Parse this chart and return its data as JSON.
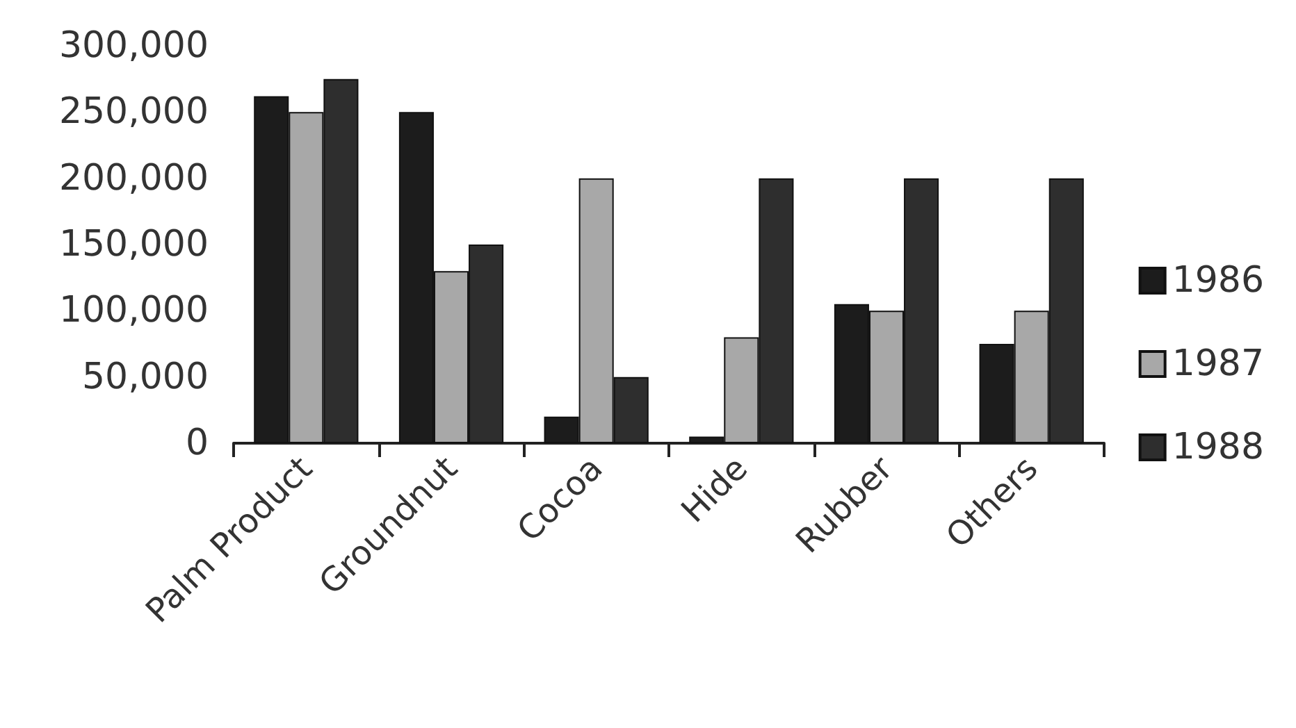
{
  "chart_data": {
    "type": "bar",
    "categories": [
      "Palm Product",
      "Groundnut",
      "Cocoa",
      "Hide",
      "Rubber",
      "Others"
    ],
    "series": [
      {
        "name": "1986",
        "color": "#1c1c1c",
        "values": [
          262000,
          250000,
          20000,
          5000,
          105000,
          75000
        ]
      },
      {
        "name": "1987",
        "color": "#a8a8a8",
        "values": [
          250000,
          130000,
          200000,
          80000,
          100000,
          100000
        ]
      },
      {
        "name": "1988",
        "color": "#2e2e2e",
        "values": [
          275000,
          150000,
          50000,
          200000,
          200000,
          200000
        ]
      }
    ],
    "ylim": [
      0,
      300000
    ],
    "yticks": [
      0,
      {
        "value": 50000,
        "label": "50,000"
      },
      {
        "value": 100000,
        "label": "100,000"
      },
      {
        "value": 150000,
        "label": "150,000"
      },
      {
        "value": 200000,
        "label": "200,000"
      },
      {
        "value": 250000,
        "label": "250,000"
      },
      {
        "value": 300000,
        "label": "300,000"
      }
    ],
    "grid": false,
    "legend": "right"
  }
}
